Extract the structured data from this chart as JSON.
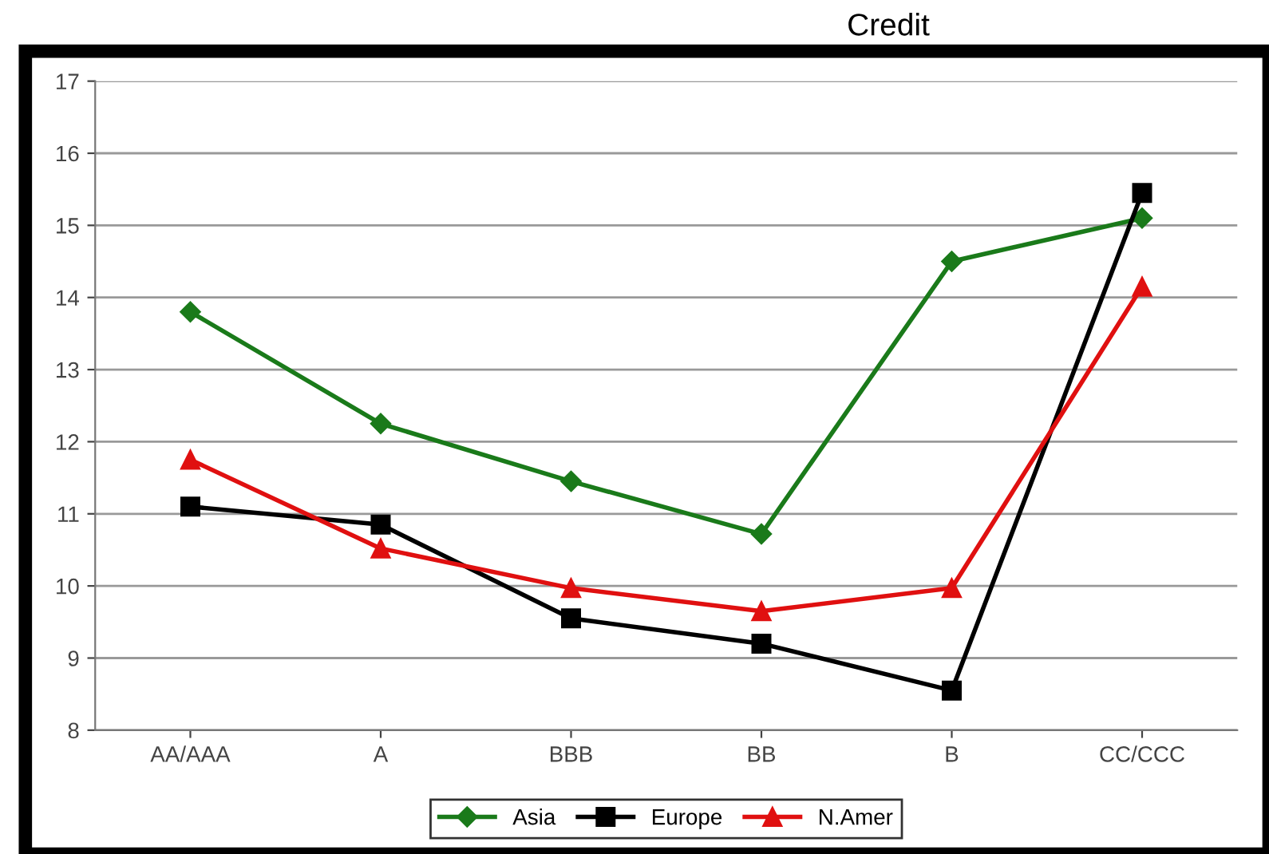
{
  "chart_data": {
    "type": "line",
    "title": "Credit",
    "categories": [
      "AA/AAA",
      "A",
      "BBB",
      "BB",
      "B",
      "CC/CCC"
    ],
    "series": [
      {
        "name": "Asia",
        "color": "#1a7a1a",
        "marker": "diamond",
        "values": [
          13.8,
          12.25,
          11.45,
          10.72,
          14.5,
          15.1
        ]
      },
      {
        "name": "Europe",
        "color": "#000000",
        "marker": "square",
        "values": [
          11.1,
          10.85,
          9.55,
          9.2,
          8.55,
          15.45
        ]
      },
      {
        "name": "N.Amer",
        "color": "#e01010",
        "marker": "triangle",
        "values": [
          11.75,
          10.52,
          9.97,
          9.65,
          9.97,
          14.15
        ]
      }
    ],
    "ylim": [
      8,
      17
    ],
    "yticks": [
      8,
      9,
      10,
      11,
      12,
      13,
      14,
      15,
      16,
      17
    ],
    "grid": "y",
    "legend": "bottom"
  }
}
